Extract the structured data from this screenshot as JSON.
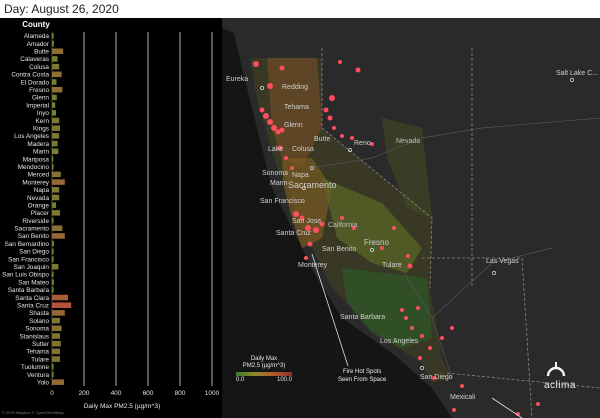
{
  "header": {
    "title": "Day:  August 26, 2020"
  },
  "chart_data": {
    "type": "bar",
    "title": "County",
    "xlabel": "Daily Max PM2.5 (µg/m^3)",
    "ylabel": "County",
    "xlim": [
      0,
      1000
    ],
    "xticks": [
      "0",
      "200",
      "400",
      "600",
      "800",
      "1000"
    ],
    "categories": [
      "Alameda",
      "Amador",
      "Butte",
      "Calaveras",
      "Colusa",
      "Contra Costa",
      "El Dorado",
      "Fresno",
      "Glenn",
      "Imperial",
      "Inyo",
      "Kern",
      "Kings",
      "Los Angeles",
      "Madera",
      "Marin",
      "Mariposa",
      "Mendocino",
      "Merced",
      "Monterey",
      "Napa",
      "Nevada",
      "Orange",
      "Placer",
      "Riverside",
      "Sacramento",
      "San Benito",
      "San Bernardino",
      "San Diego",
      "San Francisco",
      "San Joaquin",
      "San Luis Obispo",
      "San Mateo",
      "Santa Barbara",
      "Santa Clara",
      "Santa Cruz",
      "Shasta",
      "Solano",
      "Sonoma",
      "Stanislaus",
      "Sutter",
      "Tehama",
      "Tulare",
      "Tuolumne",
      "Ventura",
      "Yolo"
    ],
    "values": [
      10,
      12,
      70,
      35,
      45,
      60,
      28,
      65,
      30,
      20,
      25,
      45,
      50,
      45,
      35,
      40,
      8,
      10,
      55,
      80,
      45,
      45,
      25,
      50,
      10,
      65,
      80,
      12,
      10,
      10,
      40,
      10,
      12,
      10,
      100,
      120,
      80,
      50,
      60,
      50,
      55,
      50,
      50,
      10,
      10,
      75
    ]
  },
  "legend": {
    "title_line1": "Daily Max",
    "title_line2": "PM2.5 (µg/m^3)",
    "min": "0.0",
    "max": "100.0"
  },
  "map": {
    "cities": [
      "Eureka",
      "Redding",
      "Tehama",
      "Glenn",
      "Butte",
      "Colusa",
      "Lake",
      "Sonoma",
      "Napa",
      "Marin",
      "Reno",
      "Sacramento",
      "San Francisco",
      "San Jose",
      "Santa Cruz",
      "Monterey",
      "San Benito",
      "Fresno",
      "Tulare",
      "Santa Barbara",
      "Los Angeles",
      "San Diego",
      "Las Vegas",
      "Salt Lake C...",
      "Mexicali",
      "California",
      "Nevada"
    ],
    "annotation_line1": "Fire Hot Spots",
    "annotation_line2": "Seen From Space",
    "brand": "aclima"
  },
  "footer": {
    "copyright": "© 2020 Mapbox © OpenStreetMap"
  },
  "colors": {
    "bar_low": "#5a8f2c",
    "bar_high": "#b5533a",
    "fire": "#ff4d5e",
    "background": "#000000"
  }
}
